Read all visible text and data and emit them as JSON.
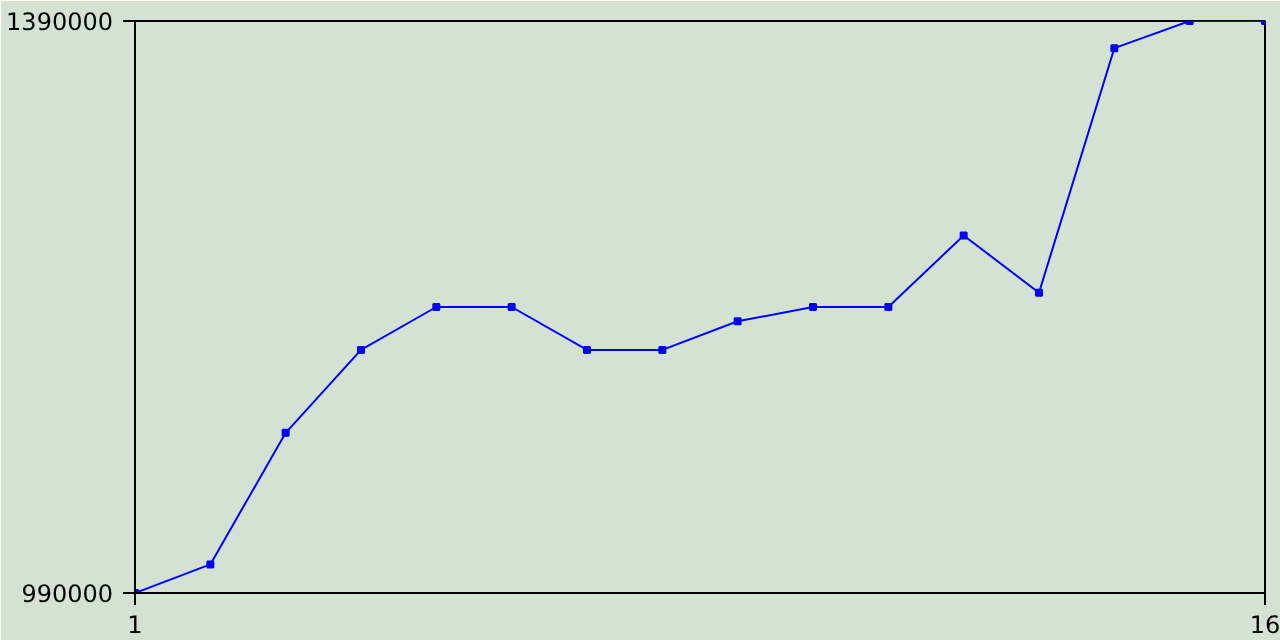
{
  "chart_data": {
    "type": "line",
    "x": [
      1,
      2,
      3,
      4,
      5,
      6,
      7,
      8,
      9,
      10,
      11,
      12,
      13,
      14,
      15,
      16
    ],
    "series": [
      {
        "color": "#0000ff",
        "values": [
          990000,
          1010000,
          1102000,
          1160000,
          1190000,
          1190000,
          1160000,
          1160000,
          1180000,
          1190000,
          1190000,
          1240000,
          1200000,
          1371000,
          1390000,
          1390000
        ]
      }
    ],
    "xlim": [
      1,
      16
    ],
    "ylim": [
      990000,
      1390000
    ],
    "xticks": [
      1,
      16
    ],
    "yticks": [
      990000,
      1390000
    ],
    "marker": "square",
    "line_style": "solid"
  }
}
